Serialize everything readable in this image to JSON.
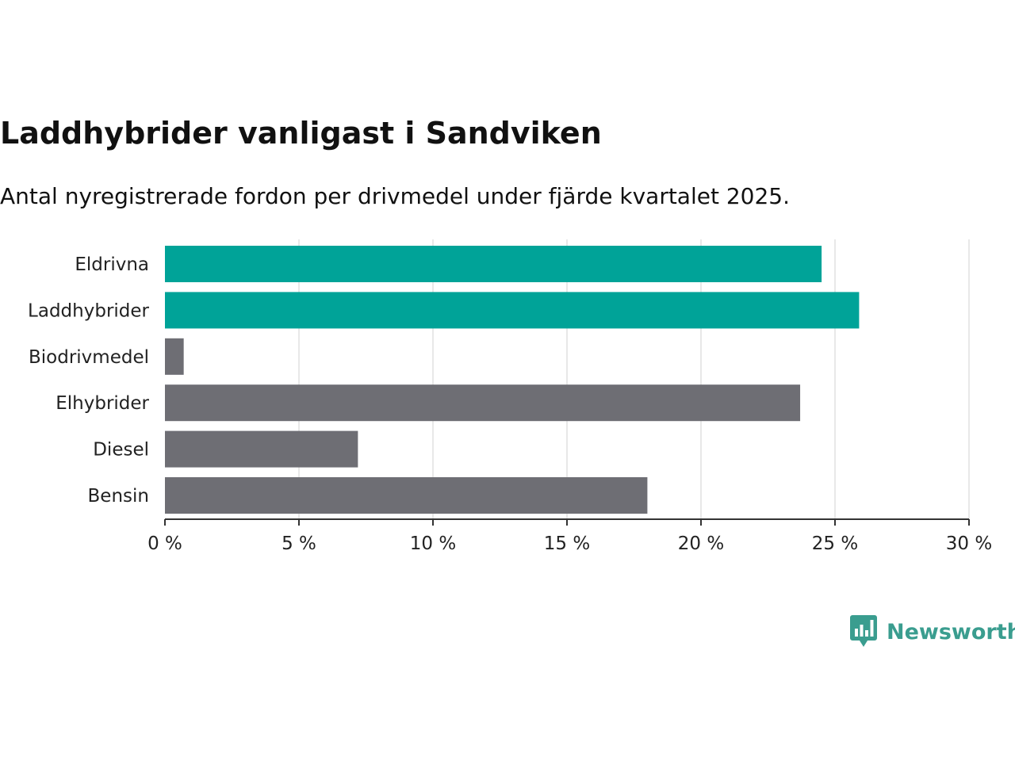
{
  "title": "Laddhybrider vanligast i Sandviken",
  "subtitle": "Antal nyregistrerade fordon per drivmedel under fjärde kvartalet 2025.",
  "logo": {
    "text": "Newsworthy",
    "icon": "bar-chart-speech-bubble-icon",
    "color": "#3a9d8f"
  },
  "chart_data": {
    "type": "bar",
    "orientation": "horizontal",
    "title": "Laddhybrider vanligast i Sandviken",
    "subtitle": "Antal nyregistrerade fordon per drivmedel under fjärde kvartalet 2025.",
    "xlabel": "",
    "ylabel": "",
    "categories": [
      "Eldrivna",
      "Laddhybrider",
      "Biodrivmedel",
      "Elhybrider",
      "Diesel",
      "Bensin"
    ],
    "values": [
      24.5,
      25.9,
      0.7,
      23.7,
      7.2,
      18.0
    ],
    "highlight": [
      true,
      true,
      false,
      false,
      false,
      false
    ],
    "colors": {
      "highlight": "#00a398",
      "default": "#6e6e74",
      "grid": "#e0e0e0",
      "axis": "#333333"
    },
    "xlim": [
      0,
      30
    ],
    "xticks": [
      0,
      5,
      10,
      15,
      20,
      25,
      30
    ],
    "xtick_labels": [
      "0 %",
      "5 %",
      "10 %",
      "15 %",
      "20 %",
      "25 %",
      "30 %"
    ],
    "grid": true,
    "legend": "none"
  }
}
